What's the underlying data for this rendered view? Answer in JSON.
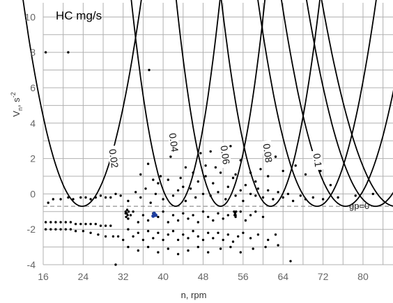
{
  "chart_data": {
    "type": "scatter",
    "title": "HC mg/s",
    "xlabel": "n, rpm",
    "ylabel": "V_n, s^-2",
    "ylabel_main": "V",
    "ylabel_sub": "n",
    "ylabel_unit": "s",
    "ylabel_exp": "-2",
    "xlim": [
      16,
      86
    ],
    "ylim": [
      -4,
      10.8
    ],
    "xticks": [
      16,
      24,
      32,
      40,
      48,
      56,
      64,
      72,
      80
    ],
    "yticks": [
      -4,
      -2,
      0,
      2,
      4,
      6,
      8,
      10
    ],
    "grid": true,
    "colors": {
      "grid": "#b0b0b0",
      "points": "#000000",
      "contour": "#000000",
      "highlight": "#1f3fa0"
    },
    "gp_line": {
      "y": -0.7,
      "label": "gp=0"
    },
    "contours": [
      {
        "label": "0.02",
        "vertex_x": 23.8,
        "width": 12,
        "label_x": 30.0,
        "label_y": 2.0
      },
      {
        "label": "0.04",
        "vertex_x": 42.5,
        "width": 9,
        "label_x": 42.0,
        "label_y": 2.9
      },
      {
        "label": "0.06",
        "vertex_x": 51.5,
        "width": 9,
        "label_x": 52.3,
        "label_y": 2.2
      },
      {
        "label": "0.08",
        "vertex_x": 61.5,
        "width": 10,
        "label_x": 60.8,
        "label_y": 2.3
      },
      {
        "label": "0.1",
        "vertex_x": 70.8,
        "width": 12,
        "label_x": 70.8,
        "label_y": 1.9
      },
      {
        "label": "",
        "vertex_x": 76.5,
        "width": 13,
        "label_x": null,
        "label_y": null
      },
      {
        "label": "",
        "vertex_x": 82.5,
        "width": 14,
        "label_x": null,
        "label_y": null
      },
      {
        "label": "",
        "vertex_x": 86.5,
        "width": 15,
        "label_x": null,
        "label_y": null
      }
    ],
    "series": [
      {
        "values": [
          [
            16.5,
            8.0
          ],
          [
            21.0,
            8.0
          ],
          [
            37.2,
            7.0
          ],
          [
            17.0,
            -0.5
          ],
          [
            18.0,
            -0.3
          ],
          [
            19.5,
            -0.3
          ],
          [
            21.0,
            -0.2
          ],
          [
            22.0,
            -0.3
          ],
          [
            23.5,
            -0.2
          ],
          [
            24.5,
            -0.2
          ],
          [
            25.5,
            -0.3
          ],
          [
            26.5,
            -0.2
          ],
          [
            27.5,
            -0.1
          ],
          [
            28.5,
            -0.2
          ],
          [
            29.5,
            -0.2
          ],
          [
            30.5,
            0.0
          ],
          [
            31.5,
            -0.1
          ],
          [
            16.5,
            -1.6
          ],
          [
            17.5,
            -1.6
          ],
          [
            18.5,
            -1.6
          ],
          [
            19.5,
            -1.6
          ],
          [
            20.5,
            -1.6
          ],
          [
            21.5,
            -1.6
          ],
          [
            22.5,
            -1.7
          ],
          [
            23.5,
            -1.7
          ],
          [
            24.5,
            -1.7
          ],
          [
            25.5,
            -1.7
          ],
          [
            26.5,
            -1.7
          ],
          [
            27.5,
            -1.8
          ],
          [
            28.5,
            -1.8
          ],
          [
            29.5,
            -1.8
          ],
          [
            16.5,
            -2.0
          ],
          [
            17.5,
            -2.0
          ],
          [
            18.5,
            -2.0
          ],
          [
            19.5,
            -2.0
          ],
          [
            20.5,
            -2.0
          ],
          [
            21.5,
            -2.0
          ],
          [
            22.5,
            -2.1
          ],
          [
            24.0,
            -2.1
          ],
          [
            25.5,
            -2.2
          ],
          [
            27.0,
            -2.3
          ],
          [
            28.5,
            -2.4
          ],
          [
            30.0,
            -2.4
          ],
          [
            33.0,
            -0.4
          ],
          [
            34.5,
            0.1
          ],
          [
            35.5,
            -0.2
          ],
          [
            36.5,
            0.3
          ],
          [
            37.5,
            -0.5
          ],
          [
            38.5,
            0.0
          ],
          [
            39.0,
            0.6
          ],
          [
            40.0,
            -0.3
          ],
          [
            41.0,
            0.8
          ],
          [
            42.0,
            -0.1
          ],
          [
            43.0,
            0.2
          ],
          [
            44.0,
            0.4
          ],
          [
            44.5,
            -0.4
          ],
          [
            45.5,
            0.3
          ],
          [
            46.5,
            -0.2
          ],
          [
            47.0,
            0.7
          ],
          [
            48.0,
            0.0
          ],
          [
            48.5,
            1.0
          ],
          [
            49.5,
            -0.1
          ],
          [
            50.0,
            0.6
          ],
          [
            51.0,
            0.1
          ],
          [
            51.5,
            1.2
          ],
          [
            52.5,
            -0.3
          ],
          [
            53.0,
            0.4
          ],
          [
            54.0,
            0.9
          ],
          [
            54.5,
            -0.1
          ],
          [
            55.5,
            0.2
          ],
          [
            56.0,
            -0.4
          ],
          [
            56.5,
            0.5
          ],
          [
            35.5,
            1.1
          ],
          [
            37.0,
            1.7
          ],
          [
            38.0,
            0.8
          ],
          [
            39.5,
            1.0
          ],
          [
            41.5,
            2.1
          ],
          [
            43.5,
            0.9
          ],
          [
            44.5,
            1.5
          ],
          [
            46.0,
            1.2
          ],
          [
            47.5,
            2.3
          ],
          [
            48.5,
            1.6
          ],
          [
            49.5,
            2.4
          ],
          [
            50.5,
            1.5
          ],
          [
            52.5,
            1.9
          ],
          [
            53.5,
            2.7
          ],
          [
            54.5,
            1.1
          ],
          [
            55.5,
            1.9
          ],
          [
            57.5,
            1.2
          ],
          [
            58.5,
            0.7
          ],
          [
            59.5,
            1.4
          ],
          [
            61.0,
            1.0
          ],
          [
            62.5,
            2.1
          ],
          [
            64.0,
            1.3
          ],
          [
            66.5,
            1.6
          ],
          [
            68.5,
            1.1
          ],
          [
            71.5,
            1.3
          ],
          [
            73.5,
            0.5
          ],
          [
            57.5,
            0.0
          ],
          [
            58.5,
            -0.1
          ],
          [
            59.0,
            0.3
          ],
          [
            60.0,
            -0.2
          ],
          [
            61.0,
            0.2
          ],
          [
            62.0,
            -0.3
          ],
          [
            63.0,
            0.1
          ],
          [
            64.0,
            -0.2
          ],
          [
            65.0,
            0.0
          ],
          [
            66.0,
            -0.4
          ],
          [
            67.5,
            -0.1
          ],
          [
            68.5,
            -0.3
          ],
          [
            70.0,
            -0.2
          ],
          [
            72.0,
            -0.3
          ],
          [
            75.0,
            -0.2
          ],
          [
            78.5,
            -0.1
          ],
          [
            82.0,
            0.0
          ],
          [
            32.5,
            -1.1
          ],
          [
            33.0,
            -1.4
          ],
          [
            33.5,
            -1.2
          ],
          [
            34.0,
            -1.0
          ],
          [
            35.0,
            -1.6
          ],
          [
            36.0,
            -1.2
          ],
          [
            37.0,
            -1.5
          ],
          [
            38.0,
            -1.1
          ],
          [
            39.0,
            -1.3
          ],
          [
            40.0,
            -1.0
          ],
          [
            41.0,
            -1.6
          ],
          [
            42.0,
            -1.2
          ],
          [
            43.0,
            -1.5
          ],
          [
            44.0,
            -1.1
          ],
          [
            45.0,
            -1.4
          ],
          [
            46.0,
            -1.2
          ],
          [
            47.0,
            -1.6
          ],
          [
            48.0,
            -1.0
          ],
          [
            49.0,
            -1.3
          ],
          [
            50.0,
            -1.5
          ],
          [
            51.0,
            -1.1
          ],
          [
            52.0,
            -1.4
          ],
          [
            53.0,
            -1.2
          ],
          [
            54.5,
            -1.3
          ],
          [
            55.5,
            -1.0
          ],
          [
            56.5,
            -1.5
          ],
          [
            57.5,
            -1.2
          ],
          [
            58.5,
            -1.0
          ],
          [
            60.0,
            -1.3
          ],
          [
            31.0,
            -2.4
          ],
          [
            32.0,
            -2.6
          ],
          [
            33.0,
            -2.0
          ],
          [
            34.0,
            -2.4
          ],
          [
            35.0,
            -2.2
          ],
          [
            36.0,
            -2.6
          ],
          [
            37.0,
            -2.1
          ],
          [
            38.0,
            -2.5
          ],
          [
            39.0,
            -2.2
          ],
          [
            40.0,
            -2.6
          ],
          [
            41.0,
            -2.3
          ],
          [
            42.0,
            -2.1
          ],
          [
            43.0,
            -2.6
          ],
          [
            44.0,
            -2.3
          ],
          [
            45.0,
            -2.5
          ],
          [
            46.0,
            -2.1
          ],
          [
            47.0,
            -2.4
          ],
          [
            48.0,
            -2.6
          ],
          [
            49.0,
            -2.2
          ],
          [
            50.0,
            -2.5
          ],
          [
            51.0,
            -2.2
          ],
          [
            52.0,
            -2.6
          ],
          [
            53.0,
            -2.3
          ],
          [
            54.0,
            -2.7
          ],
          [
            55.0,
            -2.4
          ],
          [
            56.0,
            -2.2
          ],
          [
            57.5,
            -2.5
          ],
          [
            59.0,
            -2.3
          ],
          [
            61.0,
            -2.6
          ],
          [
            62.5,
            -2.3
          ],
          [
            33.0,
            -3.0
          ],
          [
            35.0,
            -3.2
          ],
          [
            37.0,
            -3.0
          ],
          [
            39.0,
            -3.3
          ],
          [
            41.0,
            -3.1
          ],
          [
            43.0,
            -3.4
          ],
          [
            45.0,
            -3.2
          ],
          [
            47.0,
            -3.0
          ],
          [
            49.0,
            -3.3
          ],
          [
            51.5,
            -3.1
          ],
          [
            53.5,
            -3.0
          ],
          [
            55.5,
            -3.3
          ],
          [
            58.0,
            -3.1
          ],
          [
            60.5,
            -3.0
          ],
          [
            63.0,
            -2.9
          ],
          [
            30.5,
            -4.0
          ],
          [
            65.5,
            -3.8
          ],
          [
            32.5,
            -1.0
          ],
          [
            32.7,
            -1.1
          ],
          [
            32.9,
            -1.2
          ],
          [
            33.1,
            -1.0
          ],
          [
            32.6,
            -1.3
          ],
          [
            33.0,
            -1.4
          ],
          [
            32.8,
            -0.9
          ],
          [
            54.2,
            -1.0
          ],
          [
            54.4,
            -1.1
          ],
          [
            54.6,
            -1.0
          ],
          [
            54.3,
            -1.2
          ],
          [
            54.5,
            -1.2
          ]
        ]
      }
    ],
    "highlight_points": [
      [
        38.2,
        -1.1
      ],
      [
        38.5,
        -1.2
      ],
      [
        38.0,
        -1.25
      ]
    ]
  }
}
